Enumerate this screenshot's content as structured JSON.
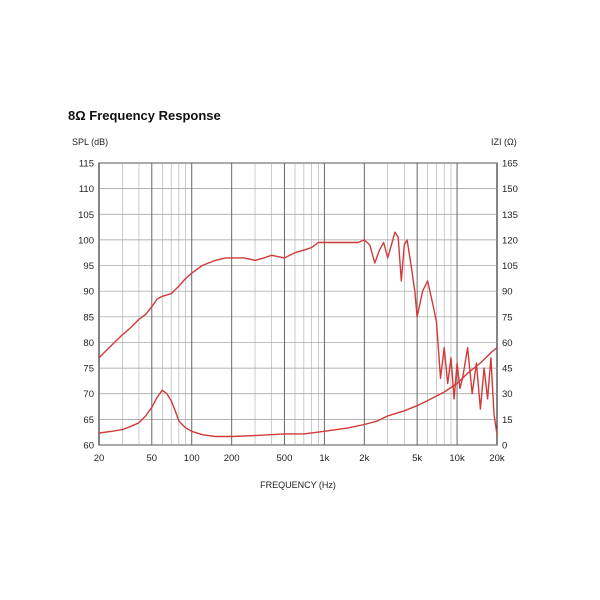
{
  "title": "8Ω Frequency Response",
  "chart_data": {
    "type": "line",
    "title": "8Ω Frequency Response",
    "xlabel": "FREQUENCY (Hz)",
    "ylabel_left": "SPL (dB)",
    "ylabel_right": "IZI (Ω)",
    "x_scale": "log",
    "xlim": [
      20,
      20000
    ],
    "ylim_left": [
      60,
      115
    ],
    "ylim_right": [
      0,
      165
    ],
    "x_ticks": [
      20,
      50,
      100,
      200,
      500,
      1000,
      2000,
      5000,
      10000,
      20000
    ],
    "x_tick_labels": [
      "20",
      "50",
      "100",
      "200",
      "500",
      "1k",
      "2k",
      "5k",
      "10k",
      "20k"
    ],
    "y_left_ticks": [
      115,
      110,
      105,
      100,
      95,
      90,
      85,
      80,
      75,
      70,
      65,
      60
    ],
    "y_right_ticks": [
      165,
      150,
      135,
      120,
      105,
      90,
      75,
      60,
      45,
      30,
      15,
      0
    ],
    "grid": true,
    "line_color": "#d23a3a",
    "series": [
      {
        "axis": "left",
        "x": [
          20,
          25,
          30,
          35,
          40,
          45,
          50,
          55,
          60,
          70,
          80,
          90,
          100,
          120,
          150,
          180,
          200,
          250,
          300,
          350,
          400,
          500,
          600,
          700,
          800,
          900,
          1000,
          1200,
          1500,
          1800,
          2000,
          2200,
          2400,
          2600,
          2800,
          3000,
          3200,
          3400,
          3600,
          3800,
          4000,
          4200,
          4500,
          4800,
          5000,
          5500,
          6000,
          6500,
          7000,
          7500,
          8000,
          8500,
          9000,
          9500,
          10000,
          10500,
          11000,
          12000,
          13000,
          14000,
          15000,
          16000,
          17000,
          18000,
          19000,
          20000
        ],
        "y": [
          77,
          79.5,
          81.5,
          83,
          84.5,
          85.5,
          87,
          88.5,
          89,
          89.5,
          91,
          92.5,
          93.5,
          95,
          96,
          96.5,
          96.5,
          96.5,
          96,
          96.5,
          97,
          96.5,
          97.5,
          98,
          98.5,
          99.5,
          99.5,
          99.5,
          99.5,
          99.5,
          100,
          99,
          95.5,
          98,
          99.5,
          96.5,
          99,
          101.5,
          100.5,
          92,
          99,
          100,
          95,
          90,
          85,
          90,
          92,
          88,
          84,
          73,
          79,
          72,
          77,
          69,
          76,
          71,
          73,
          79,
          70,
          76,
          67,
          75,
          69,
          77,
          66,
          62
        ]
      },
      {
        "axis": "right",
        "x": [
          20,
          25,
          30,
          35,
          40,
          45,
          50,
          55,
          60,
          65,
          70,
          75,
          80,
          90,
          100,
          120,
          150,
          200,
          300,
          500,
          700,
          1000,
          1500,
          2000,
          2500,
          3000,
          4000,
          5000,
          6000,
          8000,
          10000,
          12000,
          15000,
          18000,
          20000
        ],
        "y": [
          7,
          8,
          9,
          11,
          13,
          17,
          22,
          28,
          32,
          30,
          26,
          20,
          14,
          10,
          8,
          6,
          5,
          5,
          5.5,
          6.5,
          6.5,
          8,
          10,
          12,
          14,
          17,
          20,
          23,
          26,
          31,
          36,
          42,
          48,
          54,
          57
        ]
      }
    ]
  }
}
